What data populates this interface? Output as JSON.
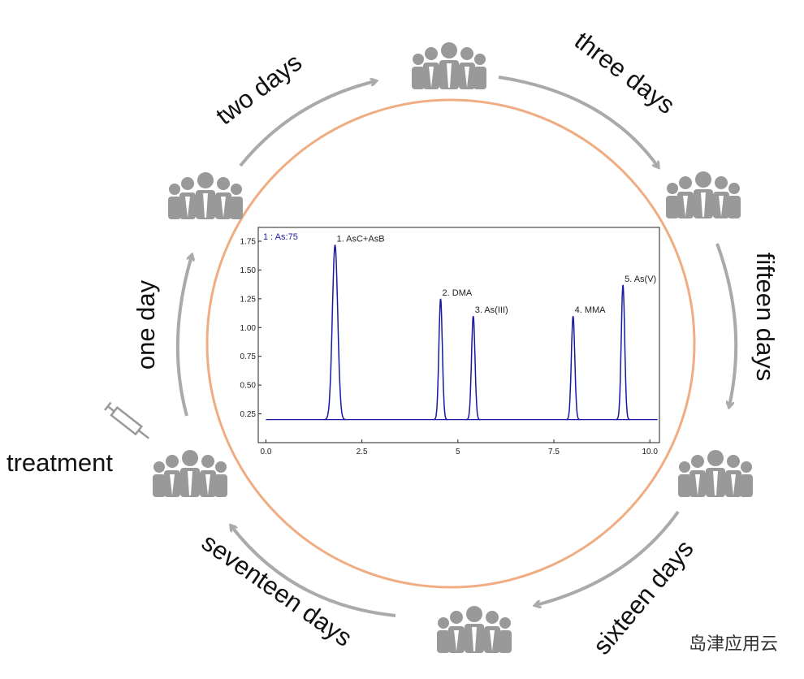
{
  "labels": {
    "treatment": "treatment",
    "one_day": "one day",
    "two_days": "two days",
    "three_days": "three days",
    "fifteen_days": "fifteen days",
    "sixteen_days": "sixteen days",
    "seventeen_days": "seventeen days"
  },
  "watermark": "岛津应用云",
  "chromatogram": {
    "trace_label": "1 : As:75",
    "baseline": 0.2,
    "xlim": [
      -0.2,
      10.25
    ],
    "ylim": [
      0,
      1.87
    ],
    "xticks": [
      {
        "value": 0,
        "label": "0.0"
      },
      2.5,
      5.0,
      7.5,
      {
        "value": 10,
        "label": "10.0"
      }
    ],
    "yticks": [
      {
        "value": 0.25,
        "label": "0.25"
      },
      {
        "value": 0.5,
        "label": "0.50"
      },
      {
        "value": 0.75,
        "label": "0.75"
      },
      {
        "value": 1,
        "label": "1.00"
      },
      {
        "value": 1.25,
        "label": "1.25"
      },
      {
        "value": 1.5,
        "label": "1.50"
      },
      {
        "value": 1.75,
        "label": "1.75"
      }
    ],
    "peaks": [
      {
        "label": "1. AsC+AsB",
        "x": 1.8,
        "y": 1.72
      },
      {
        "label": "2. DMA",
        "x": 4.55,
        "y": 1.25
      },
      {
        "label": "3. As(III)",
        "x": 5.4,
        "y": 1.1
      },
      {
        "label": "4. MMA",
        "x": 8.0,
        "y": 1.1
      },
      {
        "label": "5. As(V)",
        "x": 9.3,
        "y": 1.37
      }
    ]
  }
}
